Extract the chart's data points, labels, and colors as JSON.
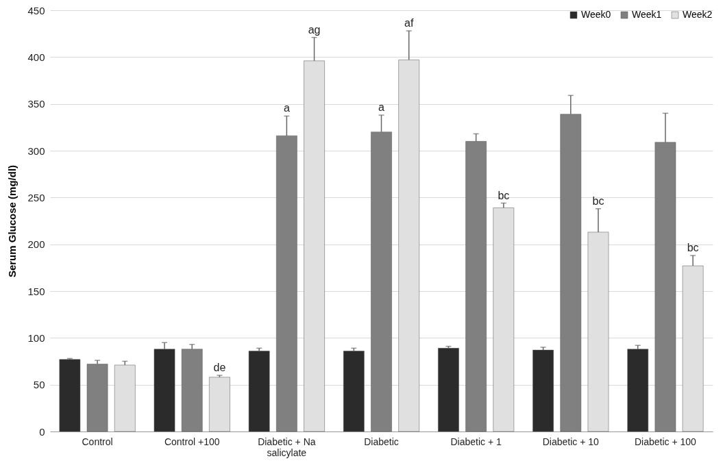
{
  "chart_data": {
    "type": "bar",
    "ylabel": "Serum Glucose (mg/dl)",
    "categories": [
      "Control",
      "Control +100",
      "Diabetic + Na salicylate",
      "Diabetic",
      "Diabetic + 1",
      "Diabetic + 10",
      "Diabetic + 100"
    ],
    "series": [
      {
        "name": "Week0",
        "color": "#2b2b2b",
        "values": [
          77,
          88,
          86,
          86,
          89,
          87,
          88
        ],
        "errors": [
          [
            77,
            78
          ],
          [
            88,
            95
          ],
          [
            86,
            89
          ],
          [
            86,
            89
          ],
          [
            89,
            91
          ],
          [
            87,
            90
          ],
          [
            88,
            92
          ]
        ]
      },
      {
        "name": "Week1",
        "color": "#808080",
        "values": [
          72,
          88,
          316,
          320,
          310,
          339,
          309
        ],
        "errors": [
          [
            72,
            76
          ],
          [
            88,
            93
          ],
          [
            316,
            337
          ],
          [
            320,
            338
          ],
          [
            310,
            318
          ],
          [
            339,
            359
          ],
          [
            309,
            340
          ]
        ],
        "value_labels": [
          null,
          null,
          "a",
          "a",
          null,
          null,
          null
        ]
      },
      {
        "name": "Week2",
        "color": "#e0e0e0",
        "values": [
          71,
          58,
          396,
          397,
          239,
          213,
          177
        ],
        "errors": [
          [
            71,
            75
          ],
          [
            58,
            60
          ],
          [
            396,
            421
          ],
          [
            397,
            428
          ],
          [
            239,
            244
          ],
          [
            213,
            238
          ],
          [
            177,
            188
          ]
        ],
        "value_labels": [
          null,
          "de",
          "ag",
          "af",
          "bc",
          "bc",
          "bc"
        ]
      }
    ],
    "ylim": [
      0,
      450
    ],
    "yticks": [
      0,
      50,
      100,
      150,
      200,
      250,
      300,
      350,
      400,
      450
    ],
    "grid": "y",
    "legend": "top right"
  }
}
